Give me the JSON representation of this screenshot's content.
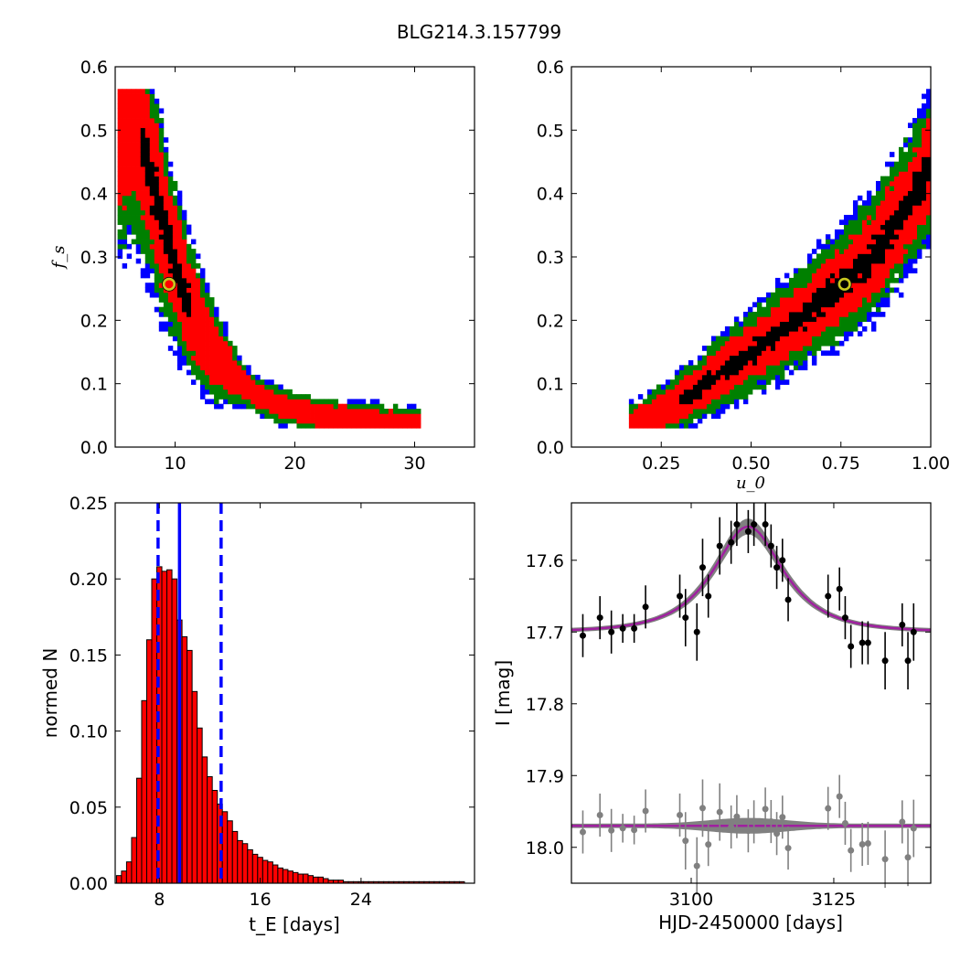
{
  "figure_title": "BLG214.3.157799",
  "chart_data": [
    {
      "type": "heatmap",
      "panel": "tE-fs",
      "xlabel": "",
      "ylabel": "f_s",
      "xlim": [
        5,
        35
      ],
      "ylim": [
        0.0,
        0.6
      ],
      "xticks": [
        "10",
        "20",
        "30"
      ],
      "yticks": [
        "0.0",
        "0.1",
        "0.2",
        "0.3",
        "0.4",
        "0.5",
        "0.6"
      ],
      "levels": [
        "black",
        "red",
        "green",
        "blue"
      ],
      "colors": {
        "black": "#000000",
        "red": "#ff0000",
        "green": "#008000",
        "blue": "#0000ff"
      },
      "ridge": [
        [
          6.5,
          0.52
        ],
        [
          7.5,
          0.46
        ],
        [
          8.5,
          0.39
        ],
        [
          9.5,
          0.32
        ],
        [
          10.5,
          0.26
        ],
        [
          11.5,
          0.21
        ],
        [
          12.5,
          0.17
        ],
        [
          13.5,
          0.14
        ],
        [
          15,
          0.11
        ],
        [
          17,
          0.08
        ],
        [
          19,
          0.065
        ],
        [
          21,
          0.055
        ],
        [
          24,
          0.045
        ],
        [
          27,
          0.04
        ],
        [
          30,
          0.035
        ]
      ],
      "best_fit": {
        "x": 9.5,
        "y": 0.257
      }
    },
    {
      "type": "heatmap",
      "panel": "u0-fs",
      "xlabel": "u_0",
      "ylabel": "",
      "xlim": [
        0.0,
        1.0
      ],
      "ylim": [
        0.0,
        0.6
      ],
      "xticks": [
        "0.25",
        "0.50",
        "0.75",
        "1.00"
      ],
      "yticks": [
        "0.0",
        "0.1",
        "0.2",
        "0.3",
        "0.4",
        "0.5",
        "0.6"
      ],
      "ridge": [
        [
          0.17,
          0.035
        ],
        [
          0.25,
          0.055
        ],
        [
          0.35,
          0.09
        ],
        [
          0.45,
          0.13
        ],
        [
          0.55,
          0.17
        ],
        [
          0.65,
          0.21
        ],
        [
          0.75,
          0.255
        ],
        [
          0.85,
          0.31
        ],
        [
          0.92,
          0.37
        ],
        [
          1.0,
          0.44
        ]
      ],
      "best_fit": {
        "x": 0.76,
        "y": 0.257
      }
    },
    {
      "type": "bar",
      "panel": "tE-histogram",
      "xlabel": "t_E [days]",
      "ylabel": "normed N",
      "xlim": [
        4.5,
        33
      ],
      "ylim": [
        0.0,
        0.25
      ],
      "xticks": [
        "8",
        "16",
        "24"
      ],
      "yticks": [
        "0.00",
        "0.05",
        "0.10",
        "0.15",
        "0.20",
        "0.25"
      ],
      "bin_start": 4.6,
      "bin_width": 0.4,
      "values": [
        0.005,
        0.008,
        0.014,
        0.03,
        0.069,
        0.12,
        0.16,
        0.2,
        0.208,
        0.205,
        0.206,
        0.2,
        0.173,
        0.162,
        0.153,
        0.126,
        0.102,
        0.083,
        0.07,
        0.061,
        0.052,
        0.047,
        0.041,
        0.034,
        0.028,
        0.026,
        0.022,
        0.019,
        0.017,
        0.015,
        0.014,
        0.012,
        0.01,
        0.009,
        0.008,
        0.007,
        0.006,
        0.006,
        0.005,
        0.004,
        0.004,
        0.003,
        0.002,
        0.002,
        0.002,
        0.001,
        0.001,
        0.001,
        0.001,
        0.001,
        0.001,
        0.001,
        0.001,
        0.001,
        0.001,
        0.001,
        0.001,
        0.001,
        0.001,
        0.001,
        0.001,
        0.001,
        0.001,
        0.001,
        0.001,
        0.001,
        0.001,
        0.001,
        0.001
      ],
      "median": 9.6,
      "interval": [
        7.9,
        12.9
      ],
      "bar_color": "#ff0000",
      "line_color": "#0000ff"
    },
    {
      "type": "scatter",
      "panel": "light-curve",
      "xlabel": "HJD-2450000 [days]",
      "ylabel": "I [mag]",
      "xlim": [
        3079,
        3142
      ],
      "ylim": [
        18.05,
        17.52
      ],
      "xticks": [
        "3100",
        "3125"
      ],
      "yticks": [
        "17.6",
        "17.7",
        "17.8",
        "17.9",
        "18.0"
      ],
      "model": {
        "baseline": 17.7,
        "peak": 17.553,
        "t0": 3110,
        "tE": 9.5,
        "u0": 0.76,
        "fs": 0.257
      },
      "data": [
        [
          3081,
          17.705,
          0.03
        ],
        [
          3084,
          17.68,
          0.03
        ],
        [
          3086,
          17.7,
          0.03
        ],
        [
          3088,
          17.695,
          0.02
        ],
        [
          3090,
          17.695,
          0.02
        ],
        [
          3092,
          17.665,
          0.03
        ],
        [
          3098,
          17.65,
          0.03
        ],
        [
          3099,
          17.68,
          0.04
        ],
        [
          3101,
          17.7,
          0.04
        ],
        [
          3102,
          17.61,
          0.04
        ],
        [
          3103,
          17.65,
          0.03
        ],
        [
          3105,
          17.58,
          0.04
        ],
        [
          3107,
          17.575,
          0.03
        ],
        [
          3108,
          17.55,
          0.03
        ],
        [
          3110,
          17.56,
          0.03
        ],
        [
          3111,
          17.55,
          0.03
        ],
        [
          3113,
          17.55,
          0.03
        ],
        [
          3114,
          17.58,
          0.03
        ],
        [
          3115,
          17.61,
          0.03
        ],
        [
          3116,
          17.6,
          0.03
        ],
        [
          3117,
          17.655,
          0.03
        ],
        [
          3124,
          17.65,
          0.03
        ],
        [
          3126,
          17.64,
          0.03
        ],
        [
          3127,
          17.68,
          0.03
        ],
        [
          3128,
          17.72,
          0.03
        ],
        [
          3130,
          17.715,
          0.03
        ],
        [
          3131,
          17.715,
          0.03
        ],
        [
          3134,
          17.74,
          0.04
        ],
        [
          3137,
          17.69,
          0.03
        ],
        [
          3138,
          17.74,
          0.04
        ],
        [
          3139,
          17.7,
          0.04
        ]
      ],
      "residual_offset": 17.97,
      "colors": {
        "data": "#000000",
        "model": "#a020a0",
        "band": "#808080",
        "residual": "#808080"
      }
    }
  ]
}
